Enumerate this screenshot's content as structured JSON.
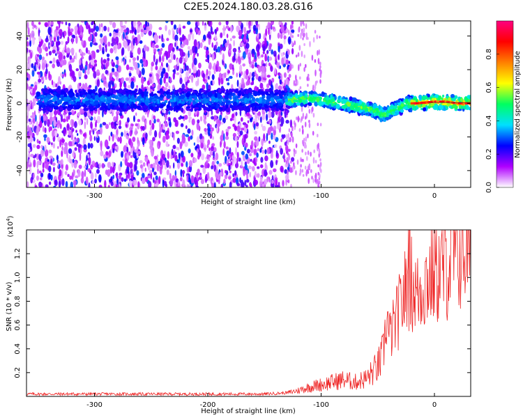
{
  "title": "C2E5.2024.180.03.28.G16",
  "chart_data": [
    {
      "type": "heatmap",
      "xlabel": "Height of straight line (km)",
      "ylabel": "Frequency (Hz)",
      "xlim": [
        -360,
        32
      ],
      "ylim": [
        -50,
        49
      ],
      "xticks": [
        -300,
        -200,
        -100,
        0
      ],
      "yticks": [
        -40,
        -20,
        0,
        20,
        40
      ],
      "xtick_labels": [
        "-300",
        "-200",
        "-100",
        "0"
      ],
      "ytick_labels": [
        "-40",
        "-20",
        "0",
        "20",
        "40"
      ],
      "frequency_trace": {
        "x": [
          -130,
          -110,
          -90,
          -75,
          -60,
          -50,
          -45,
          -40,
          -30,
          -25,
          -15,
          0,
          10,
          20,
          32
        ],
        "y": [
          2,
          3,
          1,
          -1,
          -3,
          -5,
          -7,
          -5,
          -2,
          0,
          0,
          1,
          1,
          0,
          0
        ]
      },
      "colorbar": {
        "label": "Normalized spectral amplitude",
        "range": [
          0.0,
          1.0
        ],
        "ticks": [
          0.0,
          0.2,
          0.4,
          0.6,
          0.8
        ],
        "tick_labels": [
          "0.0",
          "0.2",
          "0.4",
          "0.6",
          "0.8"
        ],
        "colors": [
          "#ffffff",
          "#b000ff",
          "#0000ff",
          "#00e0ff",
          "#00ff60",
          "#ffff00",
          "#ff8000",
          "#ff0000",
          "#ff0080"
        ]
      }
    },
    {
      "type": "line",
      "xlabel": "Height of straight line (km)",
      "ylabel": "SNR (10 * v/v)",
      "scale_label": "(x10",
      "scale_exponent": "4",
      "scale_close": ")",
      "xlim": [
        -360,
        32
      ],
      "ylim": [
        0,
        1.4
      ],
      "xticks": [
        -300,
        -200,
        -100,
        0
      ],
      "yticks": [
        0.2,
        0.4,
        0.6,
        0.8,
        1.0,
        1.2
      ],
      "xtick_labels": [
        "-300",
        "-200",
        "-100",
        "0"
      ],
      "ytick_labels": [
        "0.2",
        "0.4",
        "0.6",
        "0.8",
        "1.0",
        "1.2"
      ],
      "color": "#ee2222",
      "series": [
        {
          "name": "SNR",
          "x": [
            -360,
            -300,
            -250,
            -200,
            -150,
            -130,
            -120,
            -110,
            -100,
            -90,
            -80,
            -70,
            -60,
            -55,
            -50,
            -45,
            -42,
            -40,
            -35,
            -30,
            -25,
            -22,
            -20,
            -15,
            -10,
            -5,
            0,
            5,
            10,
            15,
            20,
            25,
            32
          ],
          "y": [
            0.02,
            0.02,
            0.02,
            0.02,
            0.02,
            0.03,
            0.05,
            0.08,
            0.1,
            0.12,
            0.14,
            0.12,
            0.15,
            0.2,
            0.25,
            0.35,
            0.7,
            0.5,
            0.6,
            0.75,
            0.9,
            1.0,
            0.95,
            0.85,
            0.95,
            1.0,
            1.05,
            1.05,
            1.1,
            1.15,
            1.2,
            1.25,
            1.27
          ]
        }
      ]
    }
  ]
}
